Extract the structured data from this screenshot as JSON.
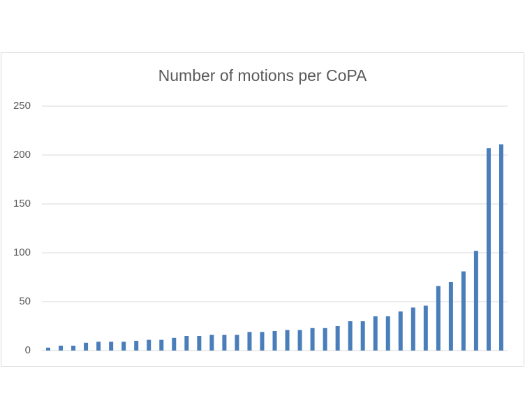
{
  "chart_data": {
    "type": "bar",
    "title": "Number of motions per CoPA",
    "categories": [
      null,
      null,
      null,
      null,
      null,
      null,
      null,
      null,
      null,
      null,
      null,
      null,
      null,
      null,
      null,
      null,
      null,
      null,
      null,
      null,
      null,
      null,
      null,
      null,
      null,
      null,
      null,
      null,
      null,
      null,
      null,
      null,
      null,
      null,
      null,
      null,
      null
    ],
    "values": [
      3,
      5,
      5,
      8,
      9,
      9,
      9,
      10,
      11,
      11,
      13,
      15,
      15,
      16,
      16,
      16,
      19,
      19,
      20,
      21,
      21,
      23,
      23,
      25,
      30,
      30,
      35,
      35,
      40,
      44,
      46,
      66,
      70,
      81,
      102,
      207,
      211
    ],
    "color": "#4a7ebb",
    "ylim": [
      0,
      250
    ],
    "yticks": [
      0,
      50,
      100,
      150,
      200,
      250
    ],
    "grid": true
  }
}
